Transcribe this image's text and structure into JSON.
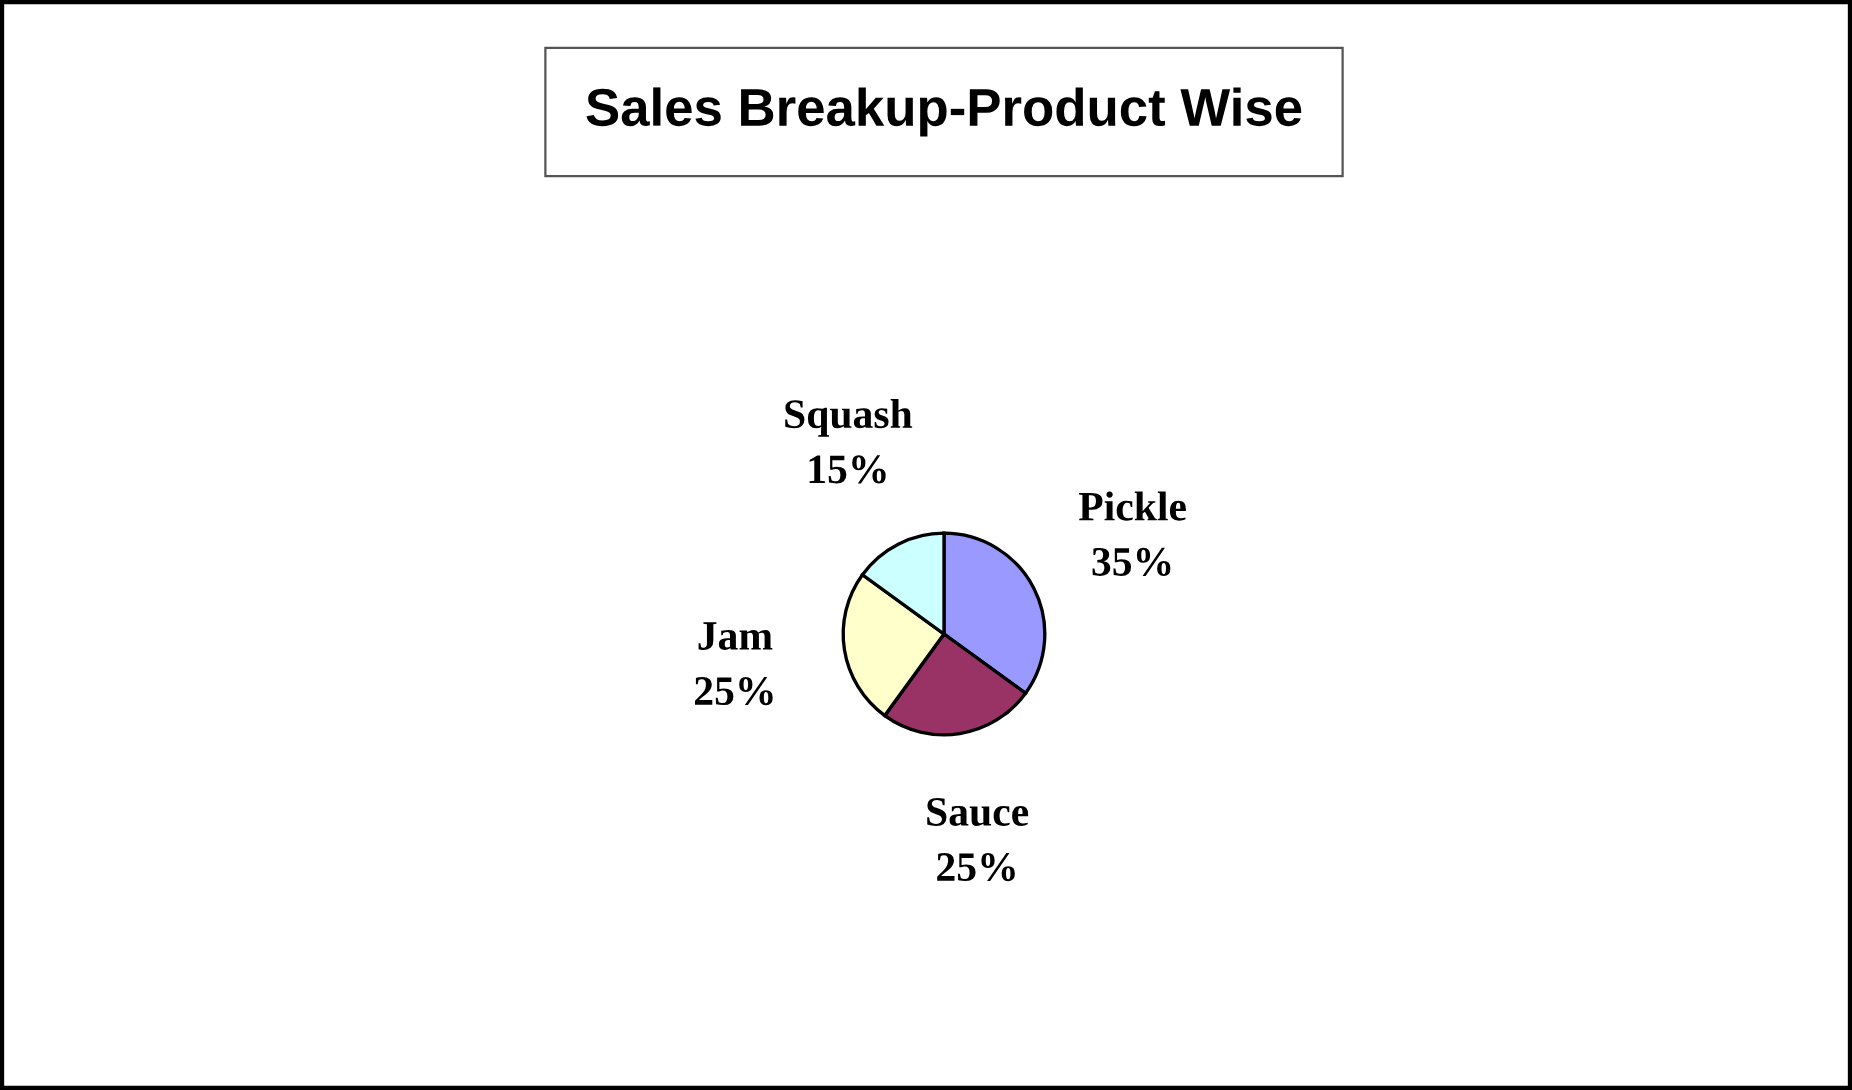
{
  "chart_data": {
    "type": "pie",
    "title": "Sales Breakup-Product Wise",
    "categories": [
      "Pickle",
      "Sauce",
      "Jam",
      "Squash"
    ],
    "values": [
      35,
      25,
      25,
      15
    ],
    "colors": [
      "#9999ff",
      "#993366",
      "#ffffcc",
      "#ccffff"
    ],
    "value_labels": [
      "35%",
      "25%",
      "25%",
      "15%"
    ],
    "legend": false
  }
}
